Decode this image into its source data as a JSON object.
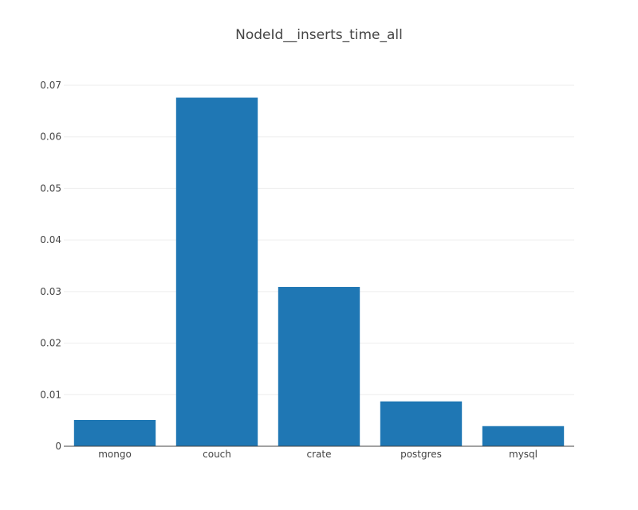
{
  "chart_data": {
    "type": "bar",
    "title": "NodeId__inserts_time_all",
    "xlabel": "",
    "ylabel": "",
    "categories": [
      "mongo",
      "couch",
      "crate",
      "postgres",
      "mysql"
    ],
    "values": [
      0.0051,
      0.0676,
      0.0309,
      0.0087,
      0.0039
    ],
    "ylim": [
      0,
      0.07
    ],
    "yticks": [
      0,
      0.01,
      0.02,
      0.03,
      0.04,
      0.05,
      0.06,
      0.07
    ],
    "ytick_labels": [
      "0",
      "0.01",
      "0.02",
      "0.03",
      "0.04",
      "0.05",
      "0.06",
      "0.07"
    ],
    "grid": true,
    "colors": {
      "bar": "#1f77b4",
      "grid": "#eeeeee",
      "axis": "#444444",
      "text": "#444444"
    }
  }
}
